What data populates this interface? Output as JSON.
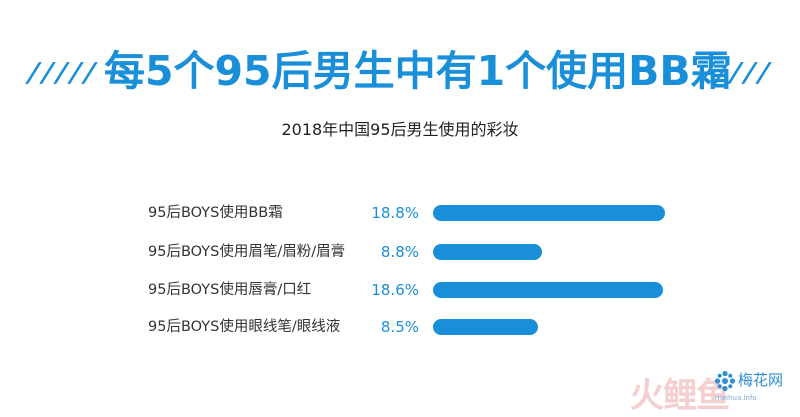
{
  "headline": "每5个95后男生中有1个使用BB霜",
  "chart_data": {
    "type": "bar",
    "orientation": "horizontal",
    "title": "2018年中国95后男生使用的彩妆",
    "categories": [
      "95后BOYS使用BB霜",
      "95后BOYS使用眉笔/眉粉/眉膏",
      "95后BOYS使用唇膏/口红",
      "95后BOYS使用眼线笔/眼线液"
    ],
    "values": [
      18.8,
      8.8,
      18.6,
      8.5
    ],
    "value_labels": [
      "18.8%",
      "8.8%",
      "18.6%",
      "8.5%"
    ],
    "unit": "%",
    "xlim": [
      0,
      18.8
    ],
    "grid": false,
    "legend": "none",
    "bar_color": "#1a8fd9"
  },
  "watermark": {
    "brand_glyphs": "火鲤鱼",
    "logo_text": "梅花网",
    "logo_url": "meihua.info"
  },
  "colors": {
    "accent": "#1a8fd9",
    "text": "#333333"
  }
}
